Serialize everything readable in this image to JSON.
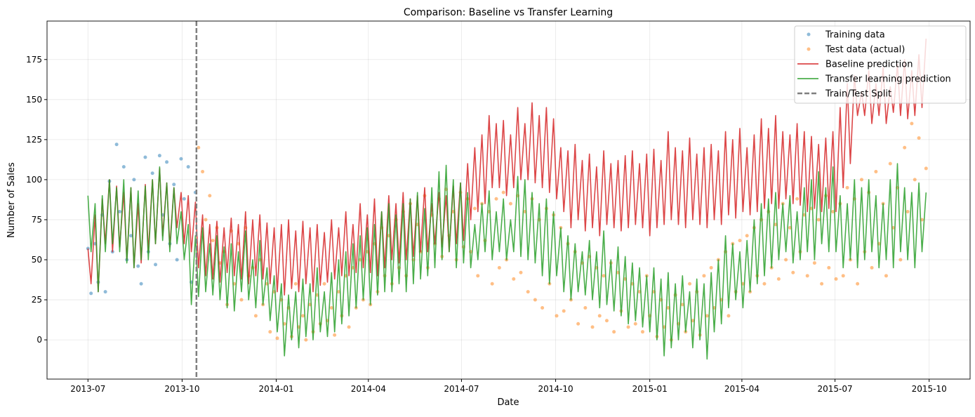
{
  "chart_data": {
    "type": "line",
    "title": "Comparison: Baseline vs Transfer Learning",
    "xlabel": "Date",
    "ylabel": "Number of Sales",
    "xlim": [
      "2013-05-22",
      "2015-11-10"
    ],
    "ylim": [
      -24.5,
      199
    ],
    "grid": true,
    "legend_position": "top-right",
    "x_ticks": [
      "2013-07",
      "2013-10",
      "2014-01",
      "2014-04",
      "2014-07",
      "2014-10",
      "2015-01",
      "2015-04",
      "2015-07",
      "2015-10"
    ],
    "y_ticks": [
      0,
      25,
      50,
      75,
      100,
      125,
      150,
      175
    ],
    "split_date": "2013-10-15",
    "split_label": "Train/Test Split",
    "x": [
      "2013-07-01",
      "2013-07-04",
      "2013-07-08",
      "2013-07-11",
      "2013-07-15",
      "2013-07-18",
      "2013-07-22",
      "2013-07-25",
      "2013-07-29",
      "2013-08-01",
      "2013-08-05",
      "2013-08-08",
      "2013-08-12",
      "2013-08-15",
      "2013-08-19",
      "2013-08-22",
      "2013-08-26",
      "2013-08-29",
      "2013-09-02",
      "2013-09-05",
      "2013-09-09",
      "2013-09-12",
      "2013-09-16",
      "2013-09-19",
      "2013-09-23",
      "2013-09-26",
      "2013-09-30",
      "2013-10-03",
      "2013-10-07",
      "2013-10-10",
      "2013-10-14",
      "2013-10-17",
      "2013-10-21",
      "2013-10-24",
      "2013-10-28",
      "2013-10-31",
      "2013-11-04",
      "2013-11-07",
      "2013-11-11",
      "2013-11-14",
      "2013-11-18",
      "2013-11-21",
      "2013-11-25",
      "2013-11-28",
      "2013-12-02",
      "2013-12-05",
      "2013-12-09",
      "2013-12-12",
      "2013-12-16",
      "2013-12-19",
      "2013-12-23",
      "2013-12-26",
      "2013-12-30",
      "2014-01-02",
      "2014-01-06",
      "2014-01-09",
      "2014-01-13",
      "2014-01-16",
      "2014-01-20",
      "2014-01-23",
      "2014-01-27",
      "2014-01-30",
      "2014-02-03",
      "2014-02-06",
      "2014-02-10",
      "2014-02-13",
      "2014-02-17",
      "2014-02-20",
      "2014-02-24",
      "2014-02-27",
      "2014-03-03",
      "2014-03-06",
      "2014-03-10",
      "2014-03-13",
      "2014-03-17",
      "2014-03-20",
      "2014-03-24",
      "2014-03-27",
      "2014-03-31",
      "2014-04-03",
      "2014-04-07",
      "2014-04-10",
      "2014-04-14",
      "2014-04-17",
      "2014-04-21",
      "2014-04-24",
      "2014-04-28",
      "2014-05-01",
      "2014-05-05",
      "2014-05-08",
      "2014-05-12",
      "2014-05-15",
      "2014-05-19",
      "2014-05-22",
      "2014-05-26",
      "2014-05-29",
      "2014-06-02",
      "2014-06-05",
      "2014-06-09",
      "2014-06-12",
      "2014-06-16",
      "2014-06-19",
      "2014-06-23",
      "2014-06-26",
      "2014-06-30",
      "2014-07-03",
      "2014-07-07",
      "2014-07-10",
      "2014-07-14",
      "2014-07-17",
      "2014-07-21",
      "2014-07-24",
      "2014-07-28",
      "2014-07-31",
      "2014-08-04",
      "2014-08-07",
      "2014-08-11",
      "2014-08-14",
      "2014-08-18",
      "2014-08-21",
      "2014-08-25",
      "2014-08-28",
      "2014-09-01",
      "2014-09-04",
      "2014-09-08",
      "2014-09-11",
      "2014-09-15",
      "2014-09-18",
      "2014-09-22",
      "2014-09-25",
      "2014-09-29",
      "2014-10-02",
      "2014-10-06",
      "2014-10-09",
      "2014-10-13",
      "2014-10-16",
      "2014-10-20",
      "2014-10-23",
      "2014-10-27",
      "2014-10-30",
      "2014-11-03",
      "2014-11-06",
      "2014-11-10",
      "2014-11-13",
      "2014-11-17",
      "2014-11-20",
      "2014-11-24",
      "2014-11-27",
      "2014-12-01",
      "2014-12-04",
      "2014-12-08",
      "2014-12-11",
      "2014-12-15",
      "2014-12-18",
      "2014-12-22",
      "2014-12-25",
      "2014-12-29",
      "2015-01-01",
      "2015-01-05",
      "2015-01-08",
      "2015-01-12",
      "2015-01-15",
      "2015-01-19",
      "2015-01-22",
      "2015-01-26",
      "2015-01-29",
      "2015-02-02",
      "2015-02-05",
      "2015-02-09",
      "2015-02-12",
      "2015-02-16",
      "2015-02-19",
      "2015-02-23",
      "2015-02-26",
      "2015-03-02",
      "2015-03-05",
      "2015-03-09",
      "2015-03-12",
      "2015-03-16",
      "2015-03-19",
      "2015-03-23",
      "2015-03-26",
      "2015-03-30",
      "2015-04-02",
      "2015-04-06",
      "2015-04-09",
      "2015-04-13",
      "2015-04-16",
      "2015-04-20",
      "2015-04-23",
      "2015-04-27",
      "2015-04-30",
      "2015-05-04",
      "2015-05-07",
      "2015-05-11",
      "2015-05-14",
      "2015-05-18",
      "2015-05-21",
      "2015-05-25",
      "2015-05-28",
      "2015-06-01",
      "2015-06-04",
      "2015-06-08",
      "2015-06-11",
      "2015-06-15",
      "2015-06-18",
      "2015-06-22",
      "2015-06-25",
      "2015-06-29",
      "2015-07-02",
      "2015-07-06",
      "2015-07-09",
      "2015-07-13",
      "2015-07-16",
      "2015-07-20",
      "2015-07-23",
      "2015-07-27",
      "2015-07-30",
      "2015-08-03",
      "2015-08-06",
      "2015-08-10",
      "2015-08-13",
      "2015-08-17",
      "2015-08-20",
      "2015-08-24",
      "2015-08-27",
      "2015-08-31",
      "2015-09-03",
      "2015-09-07",
      "2015-09-10",
      "2015-09-14",
      "2015-09-17",
      "2015-09-21",
      "2015-09-24",
      "2015-09-28"
    ],
    "series": [
      {
        "name": "Training data",
        "kind": "scatter",
        "color": "#1f77b4",
        "y": [
          57,
          29,
          60,
          36,
          78,
          30,
          99,
          55,
          122,
          80,
          108,
          50,
          65,
          100,
          46,
          35,
          114,
          55,
          104,
          47,
          115,
          78,
          111,
          60,
          97,
          50,
          113,
          88,
          108,
          36,
          92,
          null,
          null,
          null,
          null,
          null,
          null,
          null,
          null,
          null,
          null,
          null,
          null,
          null,
          null,
          null,
          null,
          null,
          null,
          null,
          null,
          null,
          null,
          null,
          null,
          null,
          null,
          null,
          null,
          null,
          null,
          null,
          null,
          null,
          null,
          null,
          null,
          null,
          null,
          null,
          null,
          null,
          null,
          null,
          null,
          null,
          null,
          null,
          null,
          null,
          null,
          null,
          null,
          null,
          null,
          null,
          null,
          null,
          null,
          null,
          null,
          null,
          null,
          null,
          null,
          null,
          null,
          null,
          null,
          null,
          null,
          null,
          null,
          null,
          null,
          null,
          null,
          null,
          null,
          null,
          null,
          null,
          null,
          null,
          null,
          null,
          null,
          null,
          null,
          null,
          null,
          null,
          null,
          null,
          null,
          null,
          null,
          null,
          null,
          null,
          null,
          null,
          null,
          null,
          null,
          null,
          null,
          null,
          null,
          null,
          null,
          null,
          null,
          null,
          null,
          null,
          null,
          null,
          null,
          null,
          null,
          null,
          null,
          null,
          null,
          null,
          null,
          null,
          null,
          null,
          null,
          null,
          null,
          null,
          null,
          null,
          null,
          null,
          null,
          null,
          null,
          null,
          null,
          null,
          null,
          null,
          null,
          null,
          null,
          null,
          null,
          null,
          null,
          null,
          null,
          null,
          null,
          null,
          null,
          null,
          null,
          null,
          null,
          null,
          null,
          null,
          null,
          null,
          null,
          null,
          null,
          null,
          null,
          null,
          null,
          null,
          null,
          null,
          null,
          null,
          null,
          null,
          null,
          null,
          null,
          null,
          null,
          null,
          null,
          null,
          null,
          null,
          null,
          null,
          null,
          null,
          null,
          null,
          null,
          null,
          null,
          null,
          null,
          null,
          null
        ]
      },
      {
        "name": "Test data (actual)",
        "kind": "scatter",
        "color": "#ff7f0e",
        "y": [
          null,
          null,
          null,
          null,
          null,
          null,
          null,
          null,
          null,
          null,
          null,
          null,
          null,
          null,
          null,
          null,
          null,
          null,
          null,
          null,
          null,
          null,
          null,
          null,
          null,
          null,
          null,
          null,
          null,
          null,
          null,
          120,
          105,
          75,
          90,
          62,
          70,
          48,
          55,
          22,
          68,
          35,
          60,
          25,
          70,
          40,
          45,
          15,
          50,
          22,
          35,
          5,
          30,
          1,
          25,
          10,
          20,
          2,
          35,
          8,
          15,
          0,
          22,
          5,
          28,
          10,
          35,
          12,
          20,
          3,
          30,
          15,
          40,
          8,
          45,
          20,
          50,
          25,
          55,
          22,
          60,
          30,
          70,
          40,
          65,
          35,
          75,
          45,
          80,
          40,
          85,
          50,
          72,
          55,
          90,
          45,
          78,
          60,
          88,
          52,
          94,
          65,
          80,
          50,
          92,
          58,
          88,
          55,
          82,
          40,
          85,
          62,
          80,
          35,
          88,
          45,
          92,
          50,
          85,
          38,
          90,
          42,
          80,
          30,
          88,
          25,
          75,
          20,
          82,
          35,
          78,
          15,
          70,
          18,
          60,
          25,
          55,
          10,
          48,
          20,
          52,
          8,
          45,
          15,
          40,
          12,
          48,
          5,
          42,
          18,
          38,
          8,
          35,
          10,
          30,
          5,
          40,
          15,
          30,
          2,
          25,
          8,
          20,
          0,
          28,
          10,
          22,
          5,
          35,
          12,
          30,
          3,
          40,
          15,
          45,
          20,
          50,
          25,
          55,
          15,
          60,
          30,
          62,
          35,
          65,
          30,
          70,
          40,
          75,
          35,
          80,
          45,
          72,
          38,
          85,
          50,
          70,
          42,
          88,
          55,
          78,
          40,
          82,
          48,
          75,
          35,
          90,
          45,
          80,
          38,
          85,
          40,
          95,
          50,
          88,
          35,
          100,
          55,
          92,
          45,
          105,
          60,
          85,
          40,
          110,
          70,
          95,
          50,
          120,
          80,
          135,
          100,
          126,
          75,
          107
        ]
      },
      {
        "name": "Baseline prediction",
        "kind": "line",
        "color": "#d62728",
        "y": [
          57,
          35,
          78,
          30,
          88,
          60,
          100,
          55,
          96,
          58,
          92,
          50,
          95,
          45,
          85,
          48,
          97,
          55,
          100,
          60,
          107,
          65,
          98,
          58,
          95,
          70,
          92,
          60,
          90,
          55,
          86,
          45,
          78,
          40,
          72,
          38,
          74,
          36,
          70,
          42,
          76,
          40,
          72,
          38,
          80,
          35,
          75,
          40,
          78,
          38,
          73,
          35,
          70,
          30,
          72,
          28,
          75,
          32,
          68,
          30,
          74,
          35,
          70,
          30,
          72,
          34,
          67,
          36,
          75,
          38,
          70,
          40,
          80,
          40,
          72,
          42,
          85,
          45,
          78,
          42,
          88,
          40,
          80,
          45,
          90,
          50,
          85,
          48,
          92,
          50,
          88,
          52,
          90,
          55,
          95,
          55,
          85,
          60,
          92,
          58,
          90,
          55,
          96,
          60,
          98,
          62,
          110,
          75,
          120,
          80,
          128,
          85,
          140,
          95,
          135,
          95,
          137,
          90,
          128,
          95,
          145,
          100,
          135,
          100,
          148,
          98,
          140,
          95,
          145,
          92,
          138,
          88,
          120,
          80,
          118,
          70,
          122,
          75,
          112,
          68,
          116,
          70,
          108,
          65,
          118,
          72,
          110,
          70,
          112,
          68,
          115,
          70,
          118,
          72,
          110,
          70,
          116,
          65,
          119,
          70,
          112,
          72,
          130,
          75,
          120,
          72,
          118,
          70,
          126,
          75,
          116,
          72,
          120,
          70,
          122,
          75,
          118,
          72,
          130,
          78,
          125,
          76,
          132,
          80,
          120,
          78,
          128,
          80,
          138,
          82,
          132,
          85,
          140,
          82,
          130,
          88,
          128,
          85,
          135,
          84,
          130,
          80,
          127,
          82,
          122,
          80,
          126,
          82,
          130,
          80,
          145,
          95,
          160,
          110,
          165,
          140,
          155,
          140,
          168,
          135,
          160,
          140,
          170,
          135,
          158,
          142,
          172,
          140,
          175,
          138,
          168,
          140,
          178,
          145,
          188
        ]
      },
      {
        "name": "Transfer learning prediction",
        "kind": "line",
        "color": "#2ca02c",
        "y": [
          90,
          55,
          85,
          30,
          90,
          55,
          100,
          60,
          95,
          55,
          100,
          48,
          95,
          45,
          93,
          50,
          96,
          50,
          100,
          60,
          108,
          62,
          98,
          55,
          95,
          60,
          80,
          50,
          72,
          22,
          65,
          27,
          70,
          30,
          60,
          28,
          65,
          25,
          58,
          20,
          60,
          18,
          55,
          30,
          68,
          25,
          50,
          20,
          62,
          22,
          45,
          12,
          40,
          5,
          35,
          -10,
          28,
          0,
          30,
          -5,
          38,
          2,
          35,
          0,
          45,
          5,
          30,
          2,
          42,
          5,
          50,
          10,
          55,
          15,
          60,
          20,
          65,
          25,
          70,
          22,
          72,
          28,
          80,
          30,
          85,
          30,
          78,
          35,
          85,
          30,
          88,
          35,
          92,
          38,
          82,
          40,
          95,
          45,
          105,
          50,
          109,
          55,
          100,
          45,
          98,
          48,
          92,
          45,
          72,
          50,
          85,
          55,
          93,
          50,
          80,
          55,
          88,
          50,
          75,
          55,
          102,
          52,
          100,
          50,
          92,
          48,
          85,
          40,
          88,
          35,
          80,
          40,
          70,
          30,
          65,
          25,
          60,
          30,
          55,
          28,
          62,
          25,
          55,
          20,
          68,
          22,
          50,
          18,
          58,
          15,
          52,
          10,
          48,
          12,
          45,
          8,
          40,
          5,
          45,
          0,
          38,
          -10,
          42,
          -5,
          35,
          0,
          40,
          5,
          30,
          -5,
          38,
          0,
          35,
          -12,
          42,
          5,
          50,
          10,
          65,
          20,
          60,
          25,
          55,
          20,
          62,
          30,
          75,
          35,
          85,
          40,
          88,
          45,
          92,
          50,
          85,
          55,
          90,
          48,
          80,
          50,
          95,
          55,
          100,
          50,
          105,
          60,
          95,
          55,
          108,
          55,
          90,
          45,
          85,
          50,
          100,
          45,
          95,
          50,
          100,
          55,
          90,
          45,
          85,
          50,
          100,
          45,
          110,
          55,
          95,
          50,
          92,
          45,
          98,
          55,
          92
        ]
      }
    ]
  }
}
